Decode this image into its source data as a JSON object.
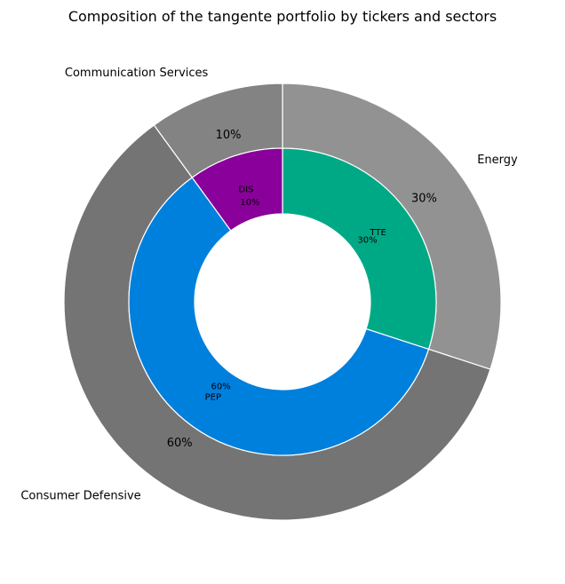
{
  "chart_data": {
    "type": "pie",
    "subtype": "nested-donut",
    "title": "Composition of the tangente portfolio by tickers and sectors",
    "direction": "clockwise",
    "start": "top",
    "outer_ring": [
      {
        "label": "Energy",
        "value": 30,
        "pct_label": "30%",
        "color": "#929292"
      },
      {
        "label": "Consumer Defensive",
        "value": 60,
        "pct_label": "60%",
        "color": "#747474"
      },
      {
        "label": "Communication Services",
        "value": 10,
        "pct_label": "10%",
        "color": "#838383"
      }
    ],
    "inner_ring": [
      {
        "label": "TTE",
        "value": 30,
        "pct_label": "30%",
        "color": "#00a985"
      },
      {
        "label": "PEP",
        "value": 60,
        "pct_label": "60%",
        "color": "#0080dd"
      },
      {
        "label": "DIS",
        "value": 10,
        "pct_label": "10%",
        "color": "#8a009a"
      }
    ],
    "edge_color": "#ffffff"
  }
}
